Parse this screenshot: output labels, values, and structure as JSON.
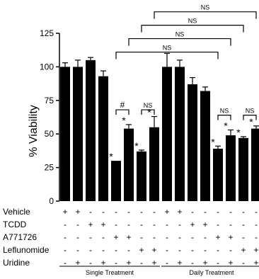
{
  "chart_data": {
    "type": "bar",
    "ylabel": "% Viability",
    "ylim": [
      0,
      125
    ],
    "yticks": [
      0,
      25,
      50,
      75,
      100,
      125
    ],
    "grid": false,
    "legend": "none",
    "bar_color": "#000000",
    "values": [
      100,
      100,
      105,
      93,
      30,
      54,
      37,
      55,
      100,
      100,
      87,
      82,
      39,
      49,
      47,
      54
    ],
    "errors": [
      3,
      5,
      2,
      4,
      0,
      3,
      1,
      8,
      10,
      5,
      5,
      3,
      2,
      4,
      1,
      2
    ],
    "star_marks": [
      false,
      false,
      false,
      false,
      true,
      true,
      true,
      true,
      false,
      false,
      false,
      false,
      true,
      true,
      true,
      true
    ],
    "star_label": "*",
    "conditions": [
      {
        "label": "Vehicle",
        "marks": [
          "+",
          "+",
          "-",
          "-",
          "-",
          "-",
          "-",
          "-",
          "+",
          "+",
          "-",
          "-",
          "-",
          "-",
          "-",
          "-"
        ]
      },
      {
        "label": "TCDD",
        "marks": [
          "-",
          "-",
          "+",
          "+",
          "-",
          "-",
          "-",
          "-",
          "-",
          "-",
          "+",
          "+",
          "-",
          "-",
          "-",
          "-"
        ]
      },
      {
        "label": "A771726",
        "marks": [
          "-",
          "-",
          "-",
          "-",
          "+",
          "+",
          "-",
          "-",
          "-",
          "-",
          "-",
          "-",
          "+",
          "+",
          "-",
          "-"
        ]
      },
      {
        "label": "Leflunomide",
        "marks": [
          "-",
          "-",
          "-",
          "-",
          "-",
          "-",
          "+",
          "+",
          "-",
          "-",
          "-",
          "-",
          "-",
          "-",
          "+",
          "+"
        ]
      },
      {
        "label": "Uridine",
        "marks": [
          "-",
          "+",
          "-",
          "+",
          "-",
          "+",
          "-",
          "+",
          "-",
          "+",
          "-",
          "+",
          "-",
          "+",
          "-",
          "+"
        ]
      }
    ],
    "groups": [
      {
        "label": "Single Treatment",
        "from": 0,
        "to": 7
      },
      {
        "label": "Daily Treatment",
        "from": 8,
        "to": 15
      }
    ],
    "comparisons": [
      {
        "label": "#",
        "from": 4,
        "to": 5,
        "level": 68
      },
      {
        "label": "NS",
        "from": 6,
        "to": 7,
        "level": 68
      },
      {
        "label": "NS",
        "from": 12,
        "to": 13,
        "level": 64
      },
      {
        "label": "NS",
        "from": 14,
        "to": 15,
        "level": 64
      },
      {
        "label": "NS",
        "from": 4,
        "to": 12,
        "level": 111
      },
      {
        "label": "NS",
        "from": 5,
        "to": 13,
        "level": 121
      },
      {
        "label": "NS",
        "from": 6,
        "to": 14,
        "level": 131
      },
      {
        "label": "NS",
        "from": 7,
        "to": 15,
        "level": 141
      }
    ]
  }
}
